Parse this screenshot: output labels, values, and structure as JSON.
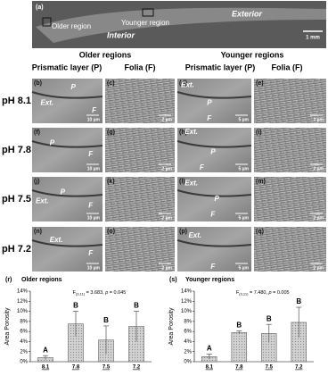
{
  "panel_a": {
    "label": "(a)",
    "older": "Older region",
    "younger": "Younger region",
    "exterior": "Exterior",
    "interior": "Interior",
    "scale": "1 mm"
  },
  "group_headers": [
    "Older regions",
    "Younger regions"
  ],
  "column_headers": [
    "Prismatic layer (P)",
    "Folia (F)",
    "Prismatic layer (P)",
    "Folia (F)"
  ],
  "rows": [
    {
      "label": "pH 8.1",
      "panels": [
        {
          "label": "(b)",
          "marks": [
            "P",
            "Ext.",
            "F"
          ],
          "scale": "10 µm"
        },
        {
          "label": "(c)",
          "marks": [],
          "scale": "2 µm"
        },
        {
          "label": "(d)",
          "marks": [
            "Ext.",
            "P",
            "F"
          ],
          "scale": "5 µm"
        },
        {
          "label": "(e)",
          "marks": [],
          "scale": "2 µm"
        }
      ]
    },
    {
      "label": "pH 7.8",
      "panels": [
        {
          "label": "(f)",
          "marks": [
            "P",
            "F"
          ],
          "scale": "10 µm"
        },
        {
          "label": "(g)",
          "marks": [],
          "scale": "2 µm"
        },
        {
          "label": "(h)",
          "marks": [
            "Ext.",
            "P",
            "F"
          ],
          "scale": "5 µm"
        },
        {
          "label": "(i)",
          "marks": [],
          "scale": "2 µm"
        }
      ]
    },
    {
      "label": "pH 7.5",
      "panels": [
        {
          "label": "(j)",
          "marks": [
            "P",
            "Ext.",
            "F"
          ],
          "scale": "10 µm"
        },
        {
          "label": "(k)",
          "marks": [],
          "scale": "2 µm"
        },
        {
          "label": "(l)",
          "marks": [
            "Ext.",
            "P",
            "F"
          ],
          "scale": "5 µm"
        },
        {
          "label": "(m)",
          "marks": [],
          "scale": "2 µm"
        }
      ]
    },
    {
      "label": "pH 7.2",
      "panels": [
        {
          "label": "(n)",
          "marks": [
            "Ext.",
            "F"
          ],
          "scale": "10 µm"
        },
        {
          "label": "(o)",
          "marks": [],
          "scale": "2 µm"
        },
        {
          "label": "(p)",
          "marks": [
            "Ext.",
            "F"
          ],
          "scale": "5 µm"
        },
        {
          "label": "(q)",
          "marks": [],
          "scale": "2 µm"
        }
      ]
    }
  ],
  "chart_data": [
    {
      "type": "bar",
      "panel_label": "(r)",
      "title": "Older regions",
      "ylabel": "Area Porosity",
      "stat": {
        "f": "F",
        "df": "(3,11)",
        "text": " = 3.683, ",
        "p": "p",
        "p_text": " = 0.045"
      },
      "categories": [
        "8.1",
        "7.8",
        "7.5",
        "7.2"
      ],
      "values": [
        0.8,
        7.5,
        4.3,
        7.0
      ],
      "errors": [
        0.4,
        2.5,
        2.8,
        3.0
      ],
      "value_labels": [
        "A",
        "B",
        "B",
        "B"
      ],
      "color": "#c8c8c8",
      "ylim": [
        0,
        14
      ],
      "yticks": [
        {
          "value": 0,
          "label": "0%"
        },
        {
          "value": 2,
          "label": "2%"
        },
        {
          "value": 4,
          "label": "4%"
        },
        {
          "value": 6,
          "label": "6%"
        },
        {
          "value": 8,
          "label": "8%"
        },
        {
          "value": 10,
          "label": "10%"
        },
        {
          "value": 12,
          "label": "12%"
        },
        {
          "value": 14,
          "label": "14%"
        }
      ]
    },
    {
      "type": "bar",
      "panel_label": "(s)",
      "title": "Younger regions",
      "ylabel": "Area Porosity",
      "stat": {
        "f": "F",
        "df": "(3,11)",
        "text": " = 7.480, ",
        "p": "p",
        "p_text": " = 0.005"
      },
      "categories": [
        "8.1",
        "7.8",
        "7.5",
        "7.2"
      ],
      "values": [
        1.0,
        5.8,
        5.6,
        7.8
      ],
      "errors": [
        0.5,
        0.3,
        1.8,
        3.0
      ],
      "value_labels": [
        "A",
        "B",
        "B",
        "B"
      ],
      "color": "#c8c8c8",
      "ylim": [
        0,
        14
      ],
      "yticks": [
        {
          "value": 0,
          "label": "0%"
        },
        {
          "value": 2,
          "label": "2%"
        },
        {
          "value": 4,
          "label": "4%"
        },
        {
          "value": 6,
          "label": "6%"
        },
        {
          "value": 8,
          "label": "8%"
        },
        {
          "value": 10,
          "label": "10%"
        },
        {
          "value": 12,
          "label": "12%"
        },
        {
          "value": 14,
          "label": "14%"
        }
      ]
    }
  ]
}
